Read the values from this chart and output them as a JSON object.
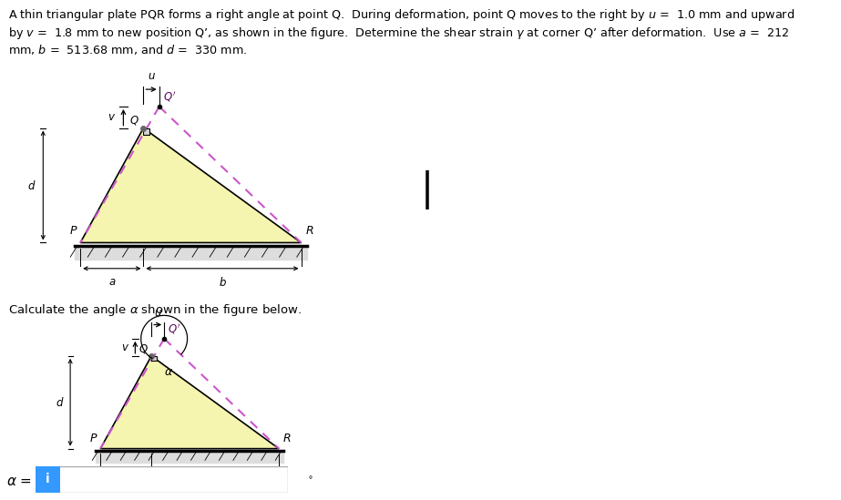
{
  "bg_color": "#ffffff",
  "triangle_fill": "#f5f5b0",
  "triangle_edge": "#000000",
  "dashed_color": "#cc55cc",
  "input_box_color": "#3399ff",
  "fig_width": 9.23,
  "fig_height": 5.49,
  "dpi": 100,
  "ground_color": "#cccccc",
  "a_s": 0.22,
  "b_s": 0.55,
  "d_s": 0.4,
  "u_s": 0.055,
  "v_s": 0.075
}
